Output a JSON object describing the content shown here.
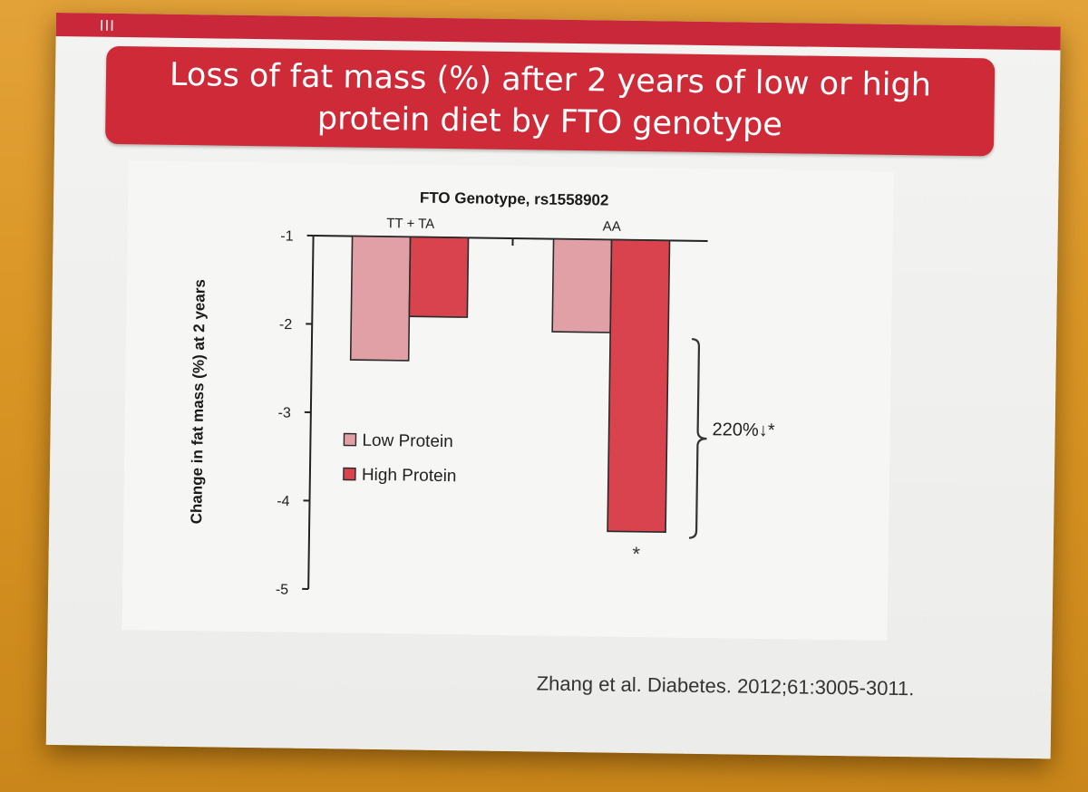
{
  "slide": {
    "marker": "III",
    "title": "Loss of fat mass (%) after 2 years of low or high protein diet by FTO genotype",
    "citation": "Zhang et al. Diabetes. 2012;61:3005-3011."
  },
  "chart_data": {
    "type": "bar",
    "title": "FTO Genotype, rs1558902",
    "xlabel": "",
    "ylabel": "Change in fat mass (%) at 2 years",
    "categories": [
      "TT + TA",
      "AA"
    ],
    "series": [
      {
        "name": "Low Protein",
        "color": "#e0a0a5",
        "values": [
          -2.4,
          -2.05
        ]
      },
      {
        "name": "High Protein",
        "color": "#d8434e",
        "values": [
          -1.9,
          -4.3
        ]
      }
    ],
    "ylim": [
      -5,
      -1
    ],
    "yticks": [
      -1,
      -2,
      -3,
      -4,
      -5
    ],
    "legend": "center-left",
    "annotations": {
      "bracket_label": "220%↓*",
      "asterisk": "*"
    }
  }
}
